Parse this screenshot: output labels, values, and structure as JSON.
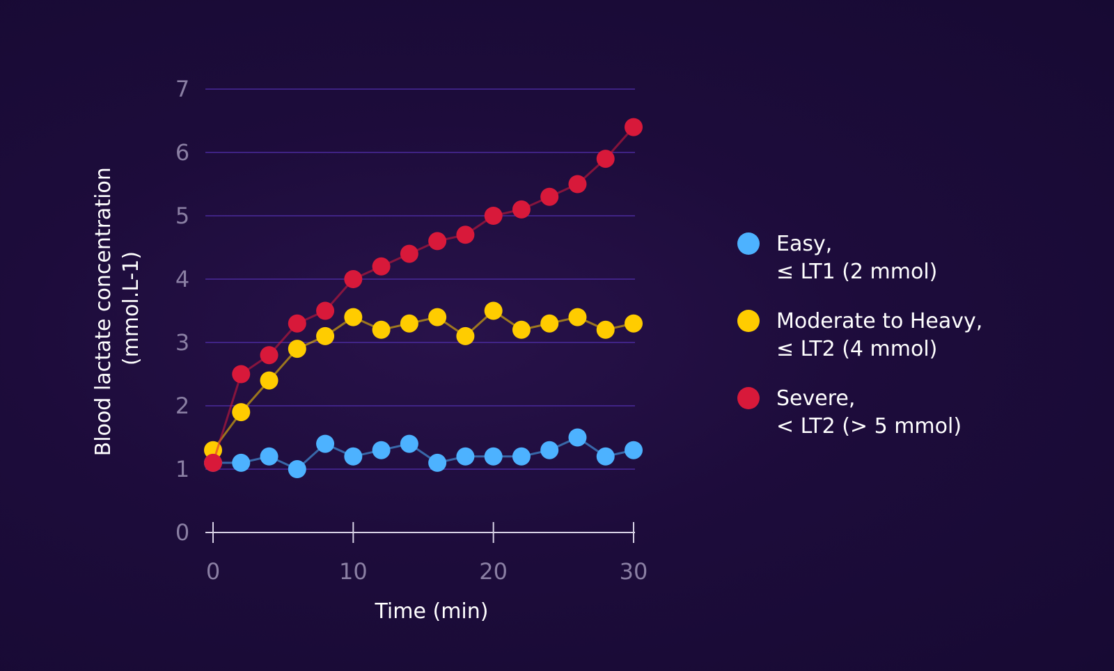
{
  "chart_data": {
    "type": "line",
    "xlabel": "Time (min)",
    "ylabel": [
      "Blood lactate concentration",
      "(mmol.L-1)"
    ],
    "xlim": [
      0,
      30
    ],
    "ylim": [
      0,
      7
    ],
    "x_ticks": [
      0,
      10,
      20,
      30
    ],
    "y_ticks": [
      0,
      1,
      2,
      3,
      4,
      5,
      6,
      7
    ],
    "grid": true,
    "legend_position": "right",
    "series": [
      {
        "name_lines": [
          "Easy,",
          "≤ LT1 (2 mmol)"
        ],
        "color": "#4db2ff",
        "x": [
          0,
          2,
          4,
          6,
          8,
          10,
          12,
          14,
          16,
          18,
          20,
          22,
          24,
          26,
          28,
          30
        ],
        "y": [
          1.1,
          1.1,
          1.2,
          1.0,
          1.4,
          1.2,
          1.3,
          1.4,
          1.1,
          1.2,
          1.2,
          1.2,
          1.3,
          1.5,
          1.2,
          1.3
        ]
      },
      {
        "name_lines": [
          "Moderate to Heavy,",
          "≤ LT2 (4 mmol)"
        ],
        "color": "#ffcc00",
        "x": [
          0,
          2,
          4,
          6,
          8,
          10,
          12,
          14,
          16,
          18,
          20,
          22,
          24,
          26,
          28,
          30
        ],
        "y": [
          1.3,
          1.9,
          2.4,
          2.9,
          3.1,
          3.4,
          3.2,
          3.3,
          3.4,
          3.1,
          3.5,
          3.2,
          3.3,
          3.4,
          3.2,
          3.3
        ]
      },
      {
        "name_lines": [
          "Severe,",
          "< LT2 (> 5 mmol)"
        ],
        "color": "#d8193a",
        "x": [
          0,
          2,
          4,
          6,
          8,
          10,
          12,
          14,
          16,
          18,
          20,
          22,
          24,
          26,
          28,
          30
        ],
        "y": [
          1.1,
          2.5,
          2.8,
          3.3,
          3.5,
          4.0,
          4.2,
          4.4,
          4.6,
          4.7,
          5.0,
          5.1,
          5.3,
          5.5,
          5.9,
          6.4
        ]
      }
    ]
  }
}
